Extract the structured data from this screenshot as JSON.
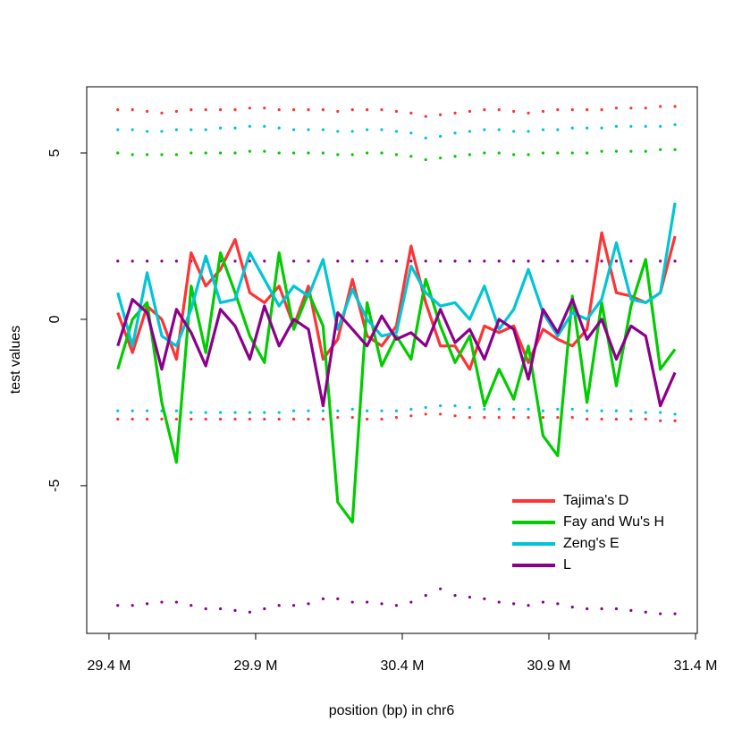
{
  "chart_data": {
    "type": "line",
    "xlabel": "position (bp) in chr6",
    "ylabel": "test values",
    "x": [
      29430000,
      29480000,
      29530000,
      29580000,
      29630000,
      29680000,
      29730000,
      29780000,
      29830000,
      29880000,
      29930000,
      29980000,
      30030000,
      30080000,
      30130000,
      30180000,
      30230000,
      30280000,
      30330000,
      30380000,
      30430000,
      30480000,
      30530000,
      30580000,
      30630000,
      30680000,
      30730000,
      30780000,
      30830000,
      30880000,
      30930000,
      30980000,
      31030000,
      31080000,
      31130000,
      31180000,
      31230000,
      31280000,
      31330000
    ],
    "series": [
      {
        "name": "Tajima's D",
        "color": "#ff3333",
        "values": [
          0.2,
          -1.0,
          0.4,
          0,
          -1.2,
          2.0,
          1.0,
          1.5,
          2.4,
          0.8,
          0.5,
          1.0,
          -0.2,
          1.0,
          -1.2,
          -0.6,
          1.2,
          -0.5,
          -0.8,
          -0.2,
          2.2,
          0.5,
          -0.8,
          -0.8,
          -1.5,
          -0.2,
          -0.4,
          -0.2,
          -1.3,
          -0.3,
          -0.6,
          -0.8,
          -0.3,
          2.6,
          0.8,
          0.7,
          0.5,
          0.8,
          2.5
        ]
      },
      {
        "name": "Fay and Wu's H",
        "color": "#00cc00",
        "values": [
          -1.5,
          0,
          0.5,
          -2.5,
          -4.3,
          1.0,
          -1.0,
          2.0,
          0.8,
          -0.5,
          -1.3,
          2.0,
          -0.3,
          0.8,
          -0.2,
          -5.5,
          -6.1,
          0.5,
          -1.4,
          -0.5,
          -1.2,
          1.2,
          -0.2,
          -1.3,
          -0.5,
          -2.6,
          -1.5,
          -2.4,
          -0.8,
          -3.5,
          -4.1,
          0.7,
          -2.5,
          0.5,
          -2.0,
          0.4,
          1.8,
          -1.5,
          -0.9
        ]
      },
      {
        "name": "Zeng's E",
        "color": "#00c5d5",
        "values": [
          0.8,
          -0.8,
          1.4,
          -0.5,
          -0.8,
          0.3,
          1.9,
          0.5,
          0.6,
          2.0,
          1.2,
          0.4,
          1.0,
          0.7,
          1.8,
          -0.3,
          0.9,
          0,
          -0.5,
          -0.4,
          1.6,
          0.8,
          0.4,
          0.5,
          0,
          1.0,
          -0.3,
          0.3,
          1.5,
          0.2,
          -0.5,
          0.2,
          0,
          0.6,
          2.3,
          0.6,
          0.5,
          0.8,
          3.5
        ]
      },
      {
        "name": "L",
        "color": "#8b008b",
        "values": [
          -0.8,
          0.6,
          0.2,
          -1.5,
          0.3,
          -0.4,
          -1.4,
          0.3,
          -0.2,
          -1.2,
          0.4,
          -0.8,
          0,
          -0.3,
          -2.6,
          0.2,
          -0.3,
          -0.8,
          0.1,
          -0.6,
          -0.4,
          -0.8,
          0.3,
          -0.7,
          -0.3,
          -1.2,
          0,
          -0.3,
          -1.8,
          0.3,
          -0.4,
          0.6,
          -0.6,
          0,
          -1.2,
          -0.2,
          -0.5,
          -2.6,
          -1.6
        ]
      }
    ],
    "thresholds": [
      {
        "color": "#ff3333",
        "values": [
          6.3,
          6.3,
          6.25,
          6.2,
          6.25,
          6.3,
          6.3,
          6.3,
          6.3,
          6.35,
          6.35,
          6.3,
          6.3,
          6.3,
          6.3,
          6.25,
          6.3,
          6.3,
          6.3,
          6.25,
          6.2,
          6.1,
          6.15,
          6.2,
          6.25,
          6.3,
          6.3,
          6.25,
          6.2,
          6.25,
          6.3,
          6.3,
          6.3,
          6.3,
          6.35,
          6.35,
          6.35,
          6.4,
          6.4
        ]
      },
      {
        "color": "#00c5d5",
        "values": [
          5.7,
          5.7,
          5.65,
          5.65,
          5.7,
          5.7,
          5.7,
          5.75,
          5.75,
          5.8,
          5.8,
          5.75,
          5.7,
          5.7,
          5.7,
          5.65,
          5.65,
          5.7,
          5.7,
          5.65,
          5.6,
          5.45,
          5.5,
          5.6,
          5.65,
          5.7,
          5.7,
          5.65,
          5.65,
          5.7,
          5.7,
          5.75,
          5.75,
          5.75,
          5.8,
          5.8,
          5.8,
          5.8,
          5.85
        ]
      },
      {
        "color": "#00cc00",
        "values": [
          5.0,
          4.95,
          4.95,
          4.95,
          4.95,
          5.0,
          5.0,
          5.0,
          5.0,
          5.05,
          5.05,
          5.0,
          5.0,
          5.0,
          5.0,
          4.95,
          4.95,
          5.0,
          5.0,
          4.95,
          4.9,
          4.8,
          4.85,
          4.9,
          4.95,
          5.0,
          5.0,
          4.95,
          4.95,
          5.0,
          5.0,
          5.0,
          5.0,
          5.05,
          5.05,
          5.05,
          5.05,
          5.1,
          5.1
        ]
      },
      {
        "color": "#8b008b",
        "values": [
          1.75,
          1.75,
          1.75,
          1.75,
          1.75,
          1.75,
          1.75,
          1.75,
          1.75,
          1.75,
          1.75,
          1.75,
          1.75,
          1.75,
          1.75,
          1.75,
          1.75,
          1.75,
          1.75,
          1.75,
          1.75,
          1.75,
          1.75,
          1.75,
          1.75,
          1.75,
          1.75,
          1.75,
          1.75,
          1.75,
          1.75,
          1.75,
          1.75,
          1.75,
          1.75,
          1.75,
          1.75,
          1.75,
          1.75
        ]
      },
      {
        "color": "#00c5d5",
        "values": [
          -2.75,
          -2.75,
          -2.75,
          -2.75,
          -2.75,
          -2.8,
          -2.8,
          -2.8,
          -2.8,
          -2.8,
          -2.8,
          -2.8,
          -2.75,
          -2.75,
          -2.75,
          -2.75,
          -2.7,
          -2.75,
          -2.75,
          -2.75,
          -2.7,
          -2.65,
          -2.6,
          -2.6,
          -2.65,
          -2.7,
          -2.7,
          -2.7,
          -2.7,
          -2.75,
          -2.7,
          -2.7,
          -2.75,
          -2.75,
          -2.75,
          -2.75,
          -2.8,
          -2.8,
          -2.85
        ]
      },
      {
        "color": "#ff3333",
        "values": [
          -3.0,
          -3.0,
          -3.0,
          -3.0,
          -3.0,
          -3.0,
          -3.0,
          -3.0,
          -3.0,
          -3.0,
          -3.0,
          -3.0,
          -3.0,
          -3.0,
          -3.0,
          -2.95,
          -2.95,
          -3.0,
          -3.0,
          -2.95,
          -2.9,
          -2.85,
          -2.85,
          -2.9,
          -2.95,
          -2.95,
          -2.95,
          -2.95,
          -2.95,
          -2.95,
          -2.95,
          -2.95,
          -3.0,
          -3.0,
          -3.0,
          -3.0,
          -3.0,
          -3.05,
          -3.05
        ]
      },
      {
        "color": "#8b008b",
        "values": [
          -8.6,
          -8.6,
          -8.55,
          -8.5,
          -8.5,
          -8.6,
          -8.7,
          -8.7,
          -8.75,
          -8.8,
          -8.7,
          -8.6,
          -8.6,
          -8.55,
          -8.4,
          -8.4,
          -8.5,
          -8.5,
          -8.55,
          -8.6,
          -8.5,
          -8.3,
          -8.1,
          -8.3,
          -8.35,
          -8.4,
          -8.5,
          -8.55,
          -8.6,
          -8.5,
          -8.55,
          -8.65,
          -8.7,
          -8.7,
          -8.7,
          -8.75,
          -8.8,
          -8.85,
          -8.85
        ]
      }
    ],
    "xlim": [
      29324000,
      31406000
    ],
    "ylim": [
      -9.44,
      6.99
    ],
    "xticks": [
      {
        "value": 29400000,
        "label": "29.4 M"
      },
      {
        "value": 29900000,
        "label": "29.9 M"
      },
      {
        "value": 30400000,
        "label": "30.4 M"
      },
      {
        "value": 30900000,
        "label": "30.9 M"
      },
      {
        "value": 31400000,
        "label": "31.4 M"
      }
    ],
    "yticks": [
      -5,
      0,
      5
    ],
    "legend": "bottomright"
  }
}
